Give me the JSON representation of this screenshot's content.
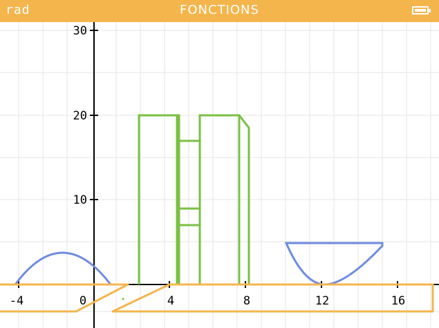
{
  "header": {
    "angle_mode": "rad",
    "title": "FONCTIONS",
    "battery_icon": "battery-icon"
  },
  "graph": {
    "x_ticks": [
      "-4",
      "0",
      "4",
      "8",
      "12",
      "16"
    ],
    "y_ticks": [
      "30",
      "20",
      "10"
    ],
    "colors": {
      "header": "#f5b54d",
      "grid": "#e6e6e6",
      "green_curve": "#7ac043",
      "blue_curve": "#6e8be0",
      "axis": "#000000"
    }
  }
}
